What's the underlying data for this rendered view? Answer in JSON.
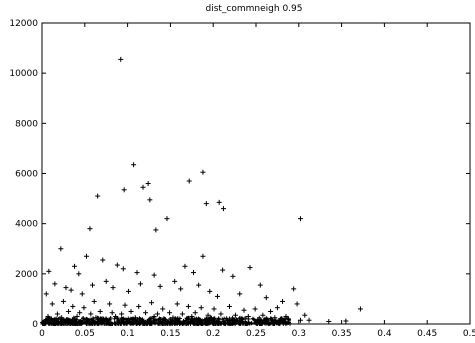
{
  "chart_data": {
    "type": "scatter",
    "title": "dist_commneigh 0.95",
    "xlabel": "",
    "ylabel": "",
    "xlim": [
      0,
      0.5
    ],
    "ylim": [
      0,
      12000
    ],
    "x_ticks": [
      "0",
      "0.05",
      "0.1",
      "0.15",
      "0.2",
      "0.25",
      "0.3",
      "0.35",
      "0.4",
      "0.45",
      "0.5"
    ],
    "y_ticks": [
      "0",
      "2000",
      "4000",
      "6000",
      "8000",
      "10000",
      "12000"
    ],
    "x_tick_values": [
      0,
      0.05,
      0.1,
      0.15,
      0.2,
      0.25,
      0.3,
      0.35,
      0.4,
      0.45,
      0.5
    ],
    "y_tick_values": [
      0,
      2000,
      4000,
      6000,
      8000,
      10000,
      12000
    ],
    "marker": "plus",
    "grid": false,
    "series": [
      {
        "points": [
          [
            0.092,
            10550
          ],
          [
            0.107,
            6350
          ],
          [
            0.065,
            5100
          ],
          [
            0.096,
            5350
          ],
          [
            0.118,
            5450
          ],
          [
            0.124,
            5600
          ],
          [
            0.172,
            5700
          ],
          [
            0.188,
            6050
          ],
          [
            0.207,
            4850
          ],
          [
            0.212,
            4600
          ],
          [
            0.192,
            4800
          ],
          [
            0.302,
            4200
          ],
          [
            0.126,
            4950
          ],
          [
            0.146,
            4200
          ],
          [
            0.133,
            3750
          ],
          [
            0.056,
            3800
          ],
          [
            0.022,
            3000
          ],
          [
            0.188,
            2700
          ],
          [
            0.038,
            2300
          ],
          [
            0.043,
            2000
          ],
          [
            0.052,
            2700
          ],
          [
            0.071,
            2550
          ],
          [
            0.088,
            2350
          ],
          [
            0.095,
            2200
          ],
          [
            0.111,
            2050
          ],
          [
            0.131,
            1950
          ],
          [
            0.167,
            2300
          ],
          [
            0.177,
            2050
          ],
          [
            0.211,
            2150
          ],
          [
            0.223,
            1900
          ],
          [
            0.243,
            2250
          ],
          [
            0.255,
            1550
          ],
          [
            0.008,
            2100
          ],
          [
            0.005,
            1200
          ],
          [
            0.015,
            1600
          ],
          [
            0.028,
            1450
          ],
          [
            0.034,
            1350
          ],
          [
            0.047,
            1200
          ],
          [
            0.059,
            1550
          ],
          [
            0.075,
            1700
          ],
          [
            0.083,
            1450
          ],
          [
            0.101,
            1300
          ],
          [
            0.115,
            1600
          ],
          [
            0.138,
            1500
          ],
          [
            0.155,
            1700
          ],
          [
            0.162,
            1400
          ],
          [
            0.183,
            1550
          ],
          [
            0.196,
            1300
          ],
          [
            0.205,
            1100
          ],
          [
            0.231,
            1200
          ],
          [
            0.262,
            1050
          ],
          [
            0.281,
            900
          ],
          [
            0.294,
            1400
          ],
          [
            0.298,
            800
          ],
          [
            0.307,
            350
          ],
          [
            0.312,
            150
          ],
          [
            0.355,
            120
          ],
          [
            0.372,
            600
          ],
          [
            0.335,
            100
          ],
          [
            0.285,
            300
          ],
          [
            0.012,
            800
          ],
          [
            0.025,
            900
          ],
          [
            0.036,
            700
          ],
          [
            0.049,
            650
          ],
          [
            0.061,
            900
          ],
          [
            0.079,
            800
          ],
          [
            0.097,
            750
          ],
          [
            0.113,
            700
          ],
          [
            0.128,
            850
          ],
          [
            0.141,
            600
          ],
          [
            0.158,
            800
          ],
          [
            0.171,
            700
          ],
          [
            0.186,
            650
          ],
          [
            0.201,
            600
          ],
          [
            0.219,
            700
          ],
          [
            0.236,
            550
          ],
          [
            0.249,
            600
          ],
          [
            0.267,
            500
          ],
          [
            0.275,
            650
          ],
          [
            0.018,
            400
          ],
          [
            0.031,
            500
          ],
          [
            0.044,
            450
          ],
          [
            0.057,
            400
          ],
          [
            0.068,
            500
          ],
          [
            0.082,
            450
          ],
          [
            0.093,
            400
          ],
          [
            0.104,
            500
          ],
          [
            0.121,
            450
          ],
          [
            0.135,
            400
          ],
          [
            0.149,
            450
          ],
          [
            0.164,
            400
          ],
          [
            0.179,
            450
          ],
          [
            0.194,
            350
          ],
          [
            0.209,
            400
          ],
          [
            0.226,
            350
          ],
          [
            0.241,
            300
          ],
          [
            0.258,
            350
          ],
          [
            0.272,
            250
          ],
          [
            0.288,
            200
          ],
          [
            0.302,
            150
          ],
          [
            0.007,
            300
          ],
          [
            0.023,
            250
          ],
          [
            0.041,
            300
          ],
          [
            0.063,
            250
          ],
          [
            0.086,
            300
          ],
          [
            0.109,
            250
          ],
          [
            0.131,
            300
          ],
          [
            0.153,
            250
          ],
          [
            0.175,
            300
          ],
          [
            0.197,
            250
          ],
          [
            0.219,
            200
          ],
          [
            0.241,
            200
          ],
          [
            0.263,
            150
          ],
          [
            0.281,
            120
          ]
        ]
      }
    ],
    "dense_band": {
      "x_range": [
        0,
        0.29
      ],
      "y_range": [
        0,
        250
      ]
    }
  }
}
